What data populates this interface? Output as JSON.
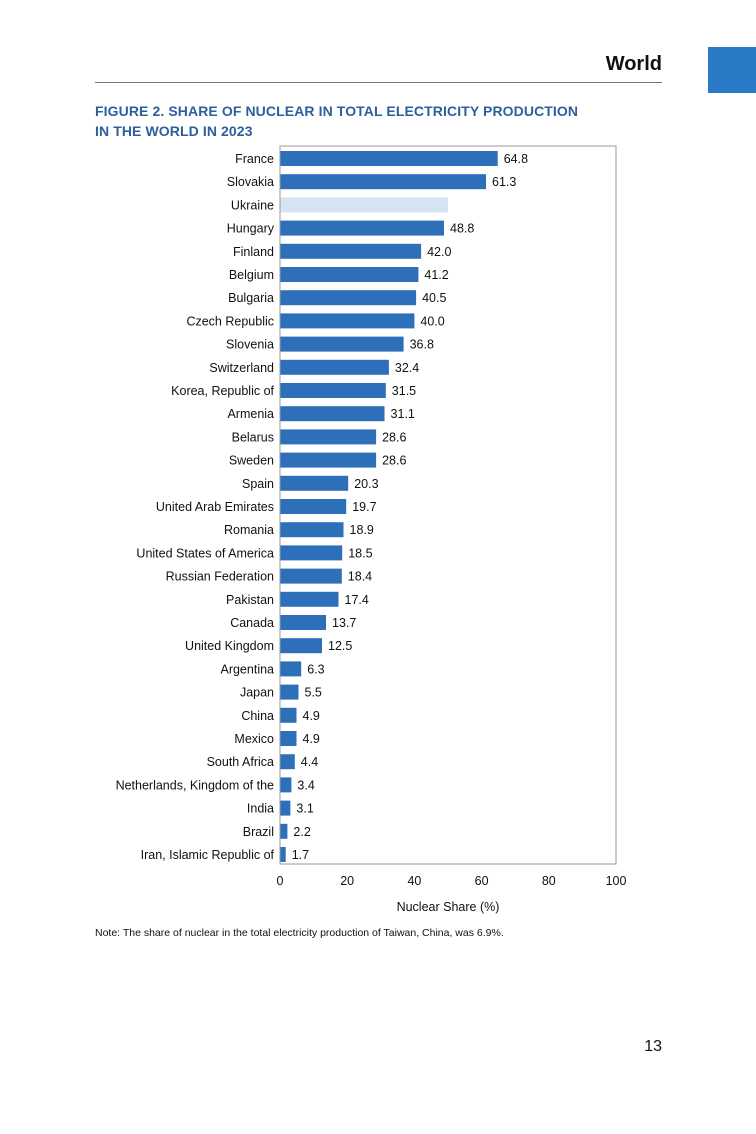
{
  "header": {
    "section": "World",
    "accent_color": "#2b7ac6"
  },
  "figure": {
    "title_line1": "FIGURE 2. SHARE OF NUCLEAR IN TOTAL ELECTRICITY PRODUCTION",
    "title_line2": "IN THE WORLD IN 2023"
  },
  "chart_data": {
    "type": "bar",
    "orientation": "horizontal",
    "xlabel": "Nuclear Share (%)",
    "xlim": [
      0,
      100
    ],
    "xticks": [
      0,
      20,
      40,
      60,
      80,
      100
    ],
    "grid": false,
    "bar_color": "#2e6fba",
    "highlight_color": "#d6e3f2",
    "categories": [
      "France",
      "Slovakia",
      "Ukraine",
      "Hungary",
      "Finland",
      "Belgium",
      "Bulgaria",
      "Czech Republic",
      "Slovenia",
      "Switzerland",
      "Korea, Republic of",
      "Armenia",
      "Belarus",
      "Sweden",
      "Spain",
      "United Arab Emirates",
      "Romania",
      "United States of America",
      "Russian Federation",
      "Pakistan",
      "Canada",
      "United Kingdom",
      "Argentina",
      "Japan",
      "China",
      "Mexico",
      "South Africa",
      "Netherlands, Kingdom of the",
      "India",
      "Brazil",
      "Iran, Islamic Republic of"
    ],
    "values": [
      64.8,
      61.3,
      50.0,
      48.8,
      42.0,
      41.2,
      40.5,
      40.0,
      36.8,
      32.4,
      31.5,
      31.1,
      28.6,
      28.6,
      20.3,
      19.7,
      18.9,
      18.5,
      18.4,
      17.4,
      13.7,
      12.5,
      6.3,
      5.5,
      4.9,
      4.9,
      4.4,
      3.4,
      3.1,
      2.2,
      1.7
    ],
    "data_labels": [
      "64.8",
      "61.3",
      "",
      "48.8",
      "42.0",
      "41.2",
      "40.5",
      "40.0",
      "36.8",
      "32.4",
      "31.5",
      "31.1",
      "28.6",
      "28.6",
      "20.3",
      "19.7",
      "18.9",
      "18.5",
      "18.4",
      "17.4",
      "13.7",
      "12.5",
      "6.3",
      "5.5",
      "4.9",
      "4.9",
      "4.4",
      "3.4",
      "3.1",
      "2.2",
      "1.7"
    ],
    "highlighted": [
      "Ukraine"
    ]
  },
  "note": "Note: The share of nuclear in the total electricity production of Taiwan, China, was 6.9%.",
  "page_number": "13"
}
